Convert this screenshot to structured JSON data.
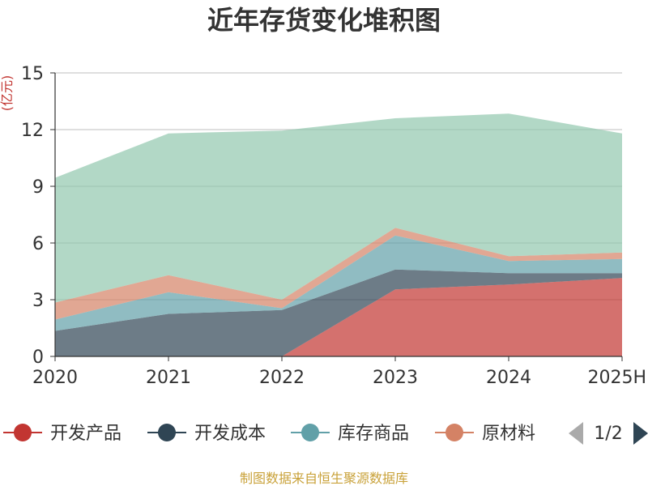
{
  "colors": {
    "series": [
      "#c23531",
      "#2f4554",
      "#61a0a8",
      "#d48265",
      "#91c7ae"
    ],
    "fill_opacity": 0.7,
    "axis": "#333333",
    "grid": "#cccccc",
    "source": "#c9a23a"
  },
  "chart_data": {
    "type": "area",
    "stacked": true,
    "title": "近年存货变化堆积图",
    "ylabel": "(亿元)",
    "xlabel": "",
    "categories": [
      "2020",
      "2021",
      "2022",
      "2023",
      "2024",
      "2025H"
    ],
    "ylim": [
      0,
      15
    ],
    "yticks": [
      0,
      3,
      6,
      9,
      12,
      15
    ],
    "grid": true,
    "legend_position": "bottom",
    "series": [
      {
        "name": "开发产品",
        "values": [
          0,
          0,
          0,
          3.55,
          3.8,
          4.15
        ]
      },
      {
        "name": "开发成本",
        "values": [
          1.35,
          2.25,
          2.45,
          1.05,
          0.6,
          0.25
        ]
      },
      {
        "name": "库存商品",
        "values": [
          0.6,
          1.15,
          0.1,
          1.8,
          0.65,
          0.75
        ]
      },
      {
        "name": "原材料",
        "values": [
          0.9,
          0.9,
          0.45,
          0.4,
          0.25,
          0.35
        ]
      },
      {
        "name": "",
        "values": [
          6.6,
          7.5,
          8.95,
          5.8,
          7.55,
          6.3
        ]
      }
    ]
  },
  "legend": {
    "items": [
      "开发产品",
      "开发成本",
      "库存商品",
      "原材料"
    ],
    "page": "1/2"
  },
  "source": "制图数据来自恒生聚源数据库"
}
